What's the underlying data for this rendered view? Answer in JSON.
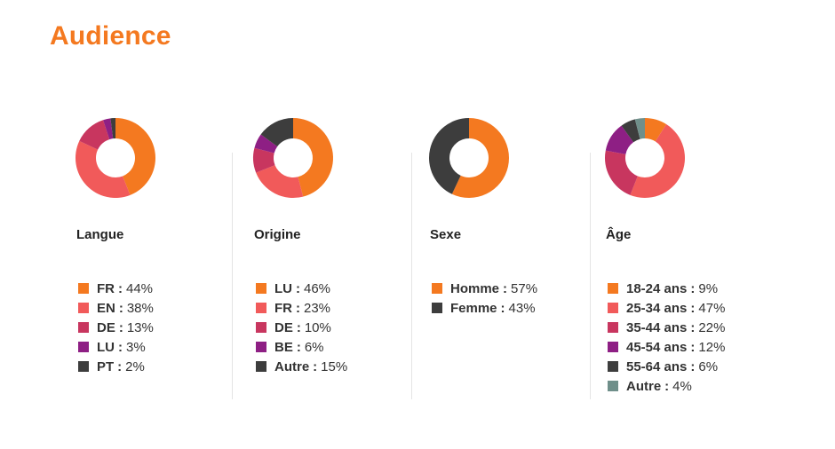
{
  "page": {
    "title": "Audience"
  },
  "chart_data": [
    {
      "type": "pie",
      "donut": true,
      "title": "Langue",
      "categories": [
        "FR",
        "EN",
        "DE",
        "LU",
        "PT"
      ],
      "values": [
        44,
        38,
        13,
        3,
        2
      ],
      "unit": "%",
      "colors": [
        "#f47920",
        "#f15a5a",
        "#c8365f",
        "#8e1f84",
        "#3d3d3d"
      ]
    },
    {
      "type": "pie",
      "donut": true,
      "title": "Origine",
      "categories": [
        "LU",
        "FR",
        "DE",
        "BE",
        "Autre"
      ],
      "values": [
        46,
        23,
        10,
        6,
        15
      ],
      "unit": "%",
      "colors": [
        "#f47920",
        "#f15a5a",
        "#c8365f",
        "#8e1f84",
        "#3d3d3d"
      ]
    },
    {
      "type": "pie",
      "donut": true,
      "title": "Sexe",
      "categories": [
        "Homme",
        "Femme"
      ],
      "values": [
        57,
        43
      ],
      "unit": "%",
      "colors": [
        "#f47920",
        "#3d3d3d"
      ]
    },
    {
      "type": "pie",
      "donut": true,
      "title": "Âge",
      "categories": [
        "18-24 ans",
        "25-34 ans",
        "35-44 ans",
        "45-54 ans",
        "55-64 ans",
        "Autre"
      ],
      "values": [
        9,
        47,
        22,
        12,
        6,
        4
      ],
      "unit": "%",
      "colors": [
        "#f47920",
        "#f15a5a",
        "#c8365f",
        "#8e1f84",
        "#3d3d3d",
        "#6f8f8a"
      ]
    }
  ]
}
